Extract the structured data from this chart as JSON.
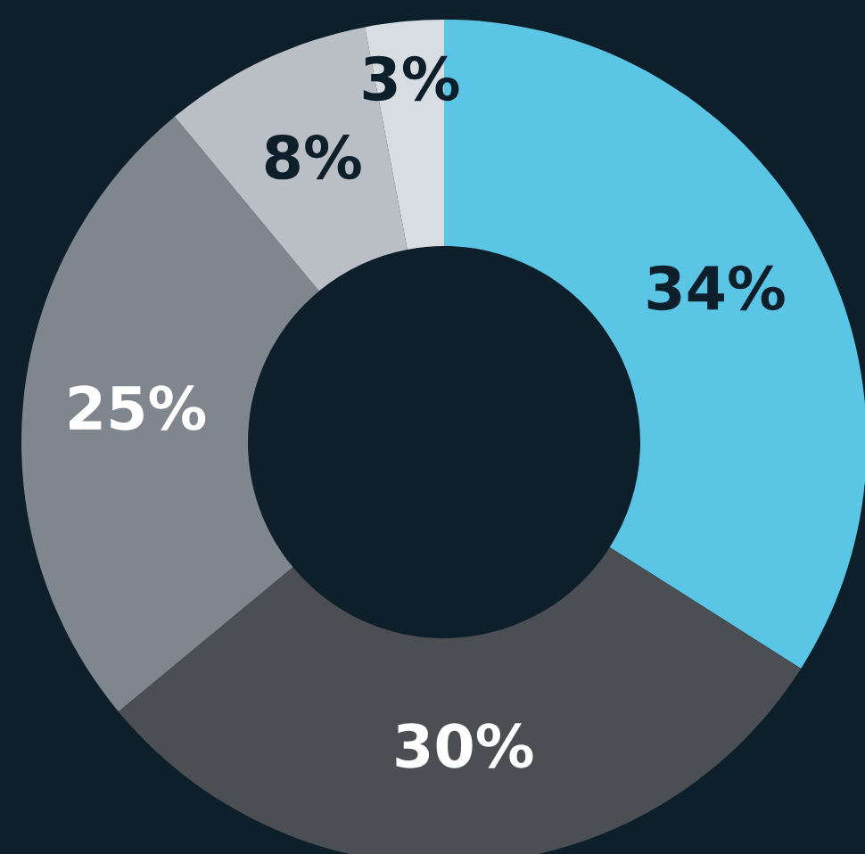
{
  "chart_data": {
    "type": "donut",
    "categories": [
      null,
      null,
      null,
      null,
      null
    ],
    "values": [
      34,
      30,
      25,
      8,
      3
    ],
    "colors": [
      "#5bc5e5",
      "#4b4e52",
      "#80868d",
      "#b9bfc5",
      "#d8dde2"
    ],
    "value_labels": [
      "34%",
      "30%",
      "25%",
      "8%",
      "3%"
    ]
  }
}
